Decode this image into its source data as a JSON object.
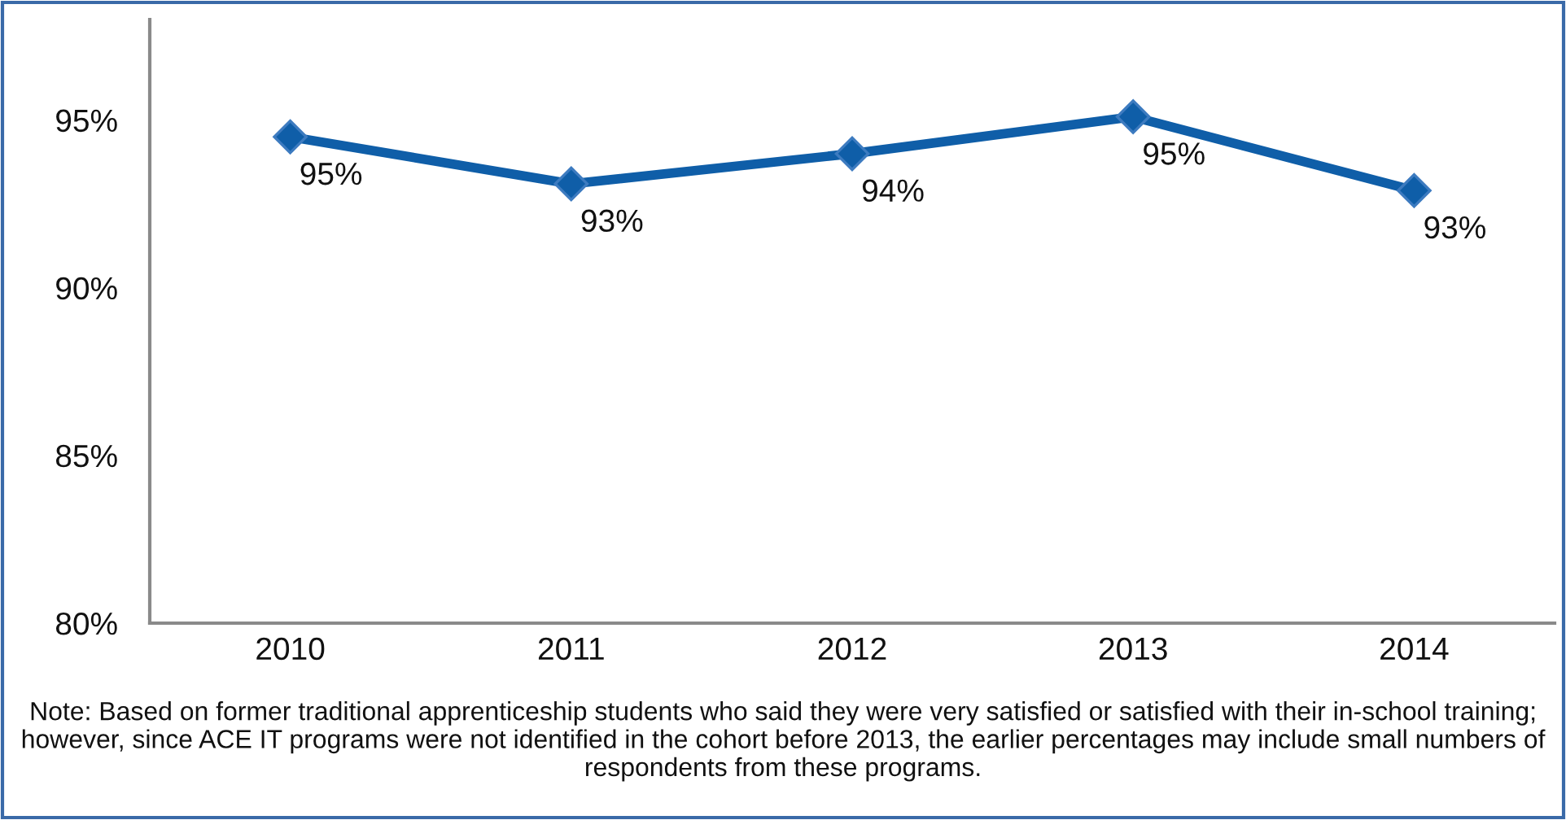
{
  "chart_data": {
    "type": "line",
    "categories": [
      "2010",
      "2011",
      "2012",
      "2013",
      "2014"
    ],
    "series": [
      {
        "color": "#0f5ea8",
        "values": [
          94.5,
          93.1,
          94.0,
          95.1,
          92.9
        ],
        "value_labels": [
          "95%",
          "93%",
          "94%",
          "95%",
          "93%"
        ]
      }
    ],
    "ylim": [
      80,
      98
    ],
    "yticks": [
      {
        "value": 80,
        "label": "80%"
      },
      {
        "value": 85,
        "label": "85%"
      },
      {
        "value": 90,
        "label": "90%"
      },
      {
        "value": 95,
        "label": "95%"
      }
    ],
    "marker": "diamond",
    "line_style": "solid",
    "grid": false,
    "annotations": [
      "Note: Based on former traditional apprenticeship students who said they were very satisfied or satisfied with their in-school training; however, since ACE IT programs were not identified in the cohort before 2013, the earlier percentages may include small numbers of respondents from these programs."
    ]
  }
}
